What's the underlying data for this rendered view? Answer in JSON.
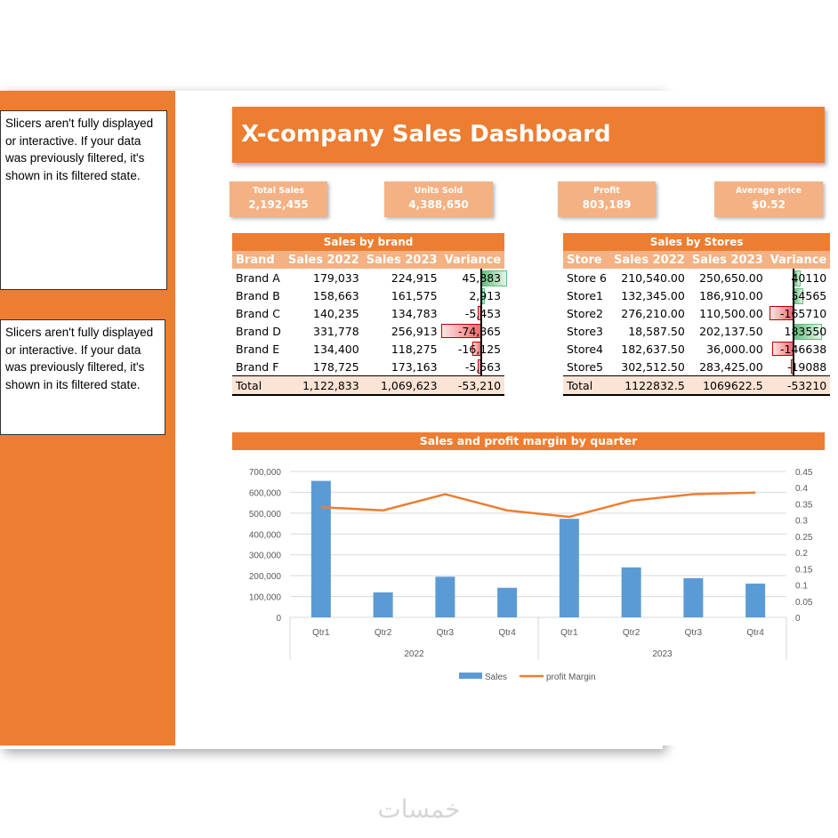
{
  "slicer_messages": [
    "Slicers aren't fully displayed or interactive. If your data was previously filtered, it's shown in its filtered state.",
    "Slicers aren't fully displayed or interactive. If your data was previously filtered, it's shown in its filtered state."
  ],
  "dashboard": {
    "title": "X-company Sales Dashboard",
    "kpis": [
      {
        "label": "Total Sales",
        "value": "2,192,455"
      },
      {
        "label": "Units Sold",
        "value": "4,388,650"
      },
      {
        "label": "Profit",
        "value": "803,189"
      },
      {
        "label": "Average price",
        "value": "$0.52"
      }
    ]
  },
  "brand_table": {
    "caption": "Sales by brand",
    "headers": [
      "Brand",
      "Sales 2022",
      "Sales 2023",
      "Variance"
    ],
    "rows": [
      {
        "name": "Brand A",
        "s2022": "179,033",
        "s2023": "224,915",
        "variance": "45,883",
        "v": 45883
      },
      {
        "name": "Brand B",
        "s2022": "158,663",
        "s2023": "161,575",
        "variance": "2,913",
        "v": 2913
      },
      {
        "name": "Brand C",
        "s2022": "140,235",
        "s2023": "134,783",
        "variance": "-5,453",
        "v": -5453
      },
      {
        "name": "Brand D",
        "s2022": "331,778",
        "s2023": "256,913",
        "variance": "-74,865",
        "v": -74865
      },
      {
        "name": "Brand E",
        "s2022": "134,400",
        "s2023": "118,275",
        "variance": "-16,125",
        "v": -16125
      },
      {
        "name": "Brand F",
        "s2022": "178,725",
        "s2023": "173,163",
        "variance": "-5,563",
        "v": -5563
      }
    ],
    "total": {
      "name": "Total",
      "s2022": "1,122,833",
      "s2023": "1,069,623",
      "variance": "-53,210"
    }
  },
  "store_table": {
    "caption": "Sales by Stores",
    "headers": [
      "Store",
      "Sales 2022",
      "Sales 2023",
      "Variance"
    ],
    "rows": [
      {
        "name": "Store 6",
        "s2022": "210,540.00",
        "s2023": "250,650.00",
        "variance": "40110",
        "v": 40110
      },
      {
        "name": "Store1",
        "s2022": "132,345.00",
        "s2023": "186,910.00",
        "variance": "54565",
        "v": 54565
      },
      {
        "name": "Store2",
        "s2022": "276,210.00",
        "s2023": "110,500.00",
        "variance": "-165710",
        "v": -165710
      },
      {
        "name": "Store3",
        "s2022": "18,587.50",
        "s2023": "202,137.50",
        "variance": "183550",
        "v": 183550
      },
      {
        "name": "Store4",
        "s2022": "182,637.50",
        "s2023": "36,000.00",
        "variance": "-146638",
        "v": -146638
      },
      {
        "name": "Store5",
        "s2022": "302,512.50",
        "s2023": "283,425.00",
        "variance": "-19088",
        "v": -19088
      }
    ],
    "total": {
      "name": "Total",
      "s2022": "1122832.5",
      "s2023": "1069622.5",
      "variance": "-53210"
    }
  },
  "colors": {
    "accent": "#ed7d31",
    "accent_light": "#f4b183",
    "total_bg": "#fbe4d5",
    "bar": "#5b9bd5",
    "line": "#ed7d31"
  },
  "chart_data": {
    "type": "bar",
    "title": "Sales and profit margin by quarter",
    "years": [
      {
        "label": "2022",
        "span": 4
      },
      {
        "label": "2023",
        "span": 4
      }
    ],
    "categories": [
      "Qtr1",
      "Qtr2",
      "Qtr3",
      "Qtr4",
      "Qtr1",
      "Qtr2",
      "Qtr3",
      "Qtr4"
    ],
    "series": [
      {
        "name": "Sales",
        "type": "bar",
        "axis": "left",
        "values": [
          655000,
          120000,
          195000,
          142000,
          473000,
          240000,
          188000,
          162000
        ]
      },
      {
        "name": "profit Margin",
        "type": "line",
        "axis": "right",
        "values": [
          0.34,
          0.33,
          0.38,
          0.33,
          0.31,
          0.36,
          0.38,
          0.385
        ]
      }
    ],
    "y_left": {
      "min": 0,
      "max": 700000,
      "step": 100000,
      "ticks": [
        "0",
        "100,000",
        "200,000",
        "300,000",
        "400,000",
        "500,000",
        "600,000",
        "700,000"
      ]
    },
    "y_right": {
      "min": 0,
      "max": 0.45,
      "step": 0.05,
      "ticks": [
        "0",
        "0.05",
        "0.1",
        "0.15",
        "0.2",
        "0.25",
        "0.3",
        "0.35",
        "0.4",
        "0.45"
      ]
    },
    "legend": "bottom",
    "grid": true
  },
  "watermark": "خمسات"
}
